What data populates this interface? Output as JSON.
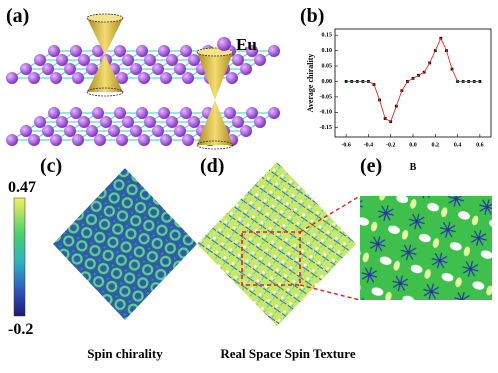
{
  "panels": {
    "a": "(a)",
    "b": "(b)",
    "c": "(c)",
    "d": "(d)",
    "e": "(e)"
  },
  "legend_a": "Eu",
  "colorbar": {
    "max": 0.47,
    "min": -0.2
  },
  "captions": {
    "c": "Spin chirality",
    "d": "Real Space Spin Texture"
  },
  "chart_data": {
    "type": "line",
    "x_label": "B",
    "y_label": "Average chirality",
    "x": [
      -0.6,
      -0.55,
      -0.5,
      -0.45,
      -0.4,
      -0.35,
      -0.3,
      -0.25,
      -0.2,
      -0.15,
      -0.1,
      -0.05,
      0,
      0.05,
      0.1,
      0.15,
      0.2,
      0.25,
      0.3,
      0.35,
      0.4,
      0.45,
      0.5,
      0.55,
      0.6
    ],
    "series": [
      {
        "color": "#000000",
        "marker": "square",
        "line": false,
        "values": [
          0,
          0,
          0,
          0,
          0,
          -0.01,
          -0.06,
          -0.12,
          -0.13,
          -0.08,
          -0.03,
          0,
          0.01,
          0.02,
          0.03,
          0.06,
          0.1,
          0.14,
          0.1,
          0.04,
          0,
          0,
          0,
          0,
          0
        ]
      },
      {
        "color": "#e0302a",
        "marker": "none",
        "line": true,
        "values": [
          0,
          0,
          0,
          0,
          0,
          -0.01,
          -0.06,
          -0.12,
          -0.13,
          -0.08,
          -0.03,
          0,
          0.01,
          0.02,
          0.03,
          0.06,
          0.1,
          0.14,
          0.1,
          0.04,
          0,
          0,
          0,
          0,
          0
        ]
      }
    ],
    "xlim": [
      -0.7,
      0.7
    ],
    "ylim": [
      -0.18,
      0.17
    ],
    "xticks": [
      -0.6,
      -0.4,
      -0.2,
      {
        "value": 0,
        "label": "0.0"
      },
      0.2,
      0.4,
      0.6
    ],
    "yticks": [
      -0.15,
      {
        "value": -0.1,
        "label": "-0.10"
      },
      -0.05,
      {
        "value": 0,
        "label": "0.00"
      },
      0.05,
      {
        "value": 0.1,
        "label": "0.10"
      },
      0.15
    ]
  }
}
